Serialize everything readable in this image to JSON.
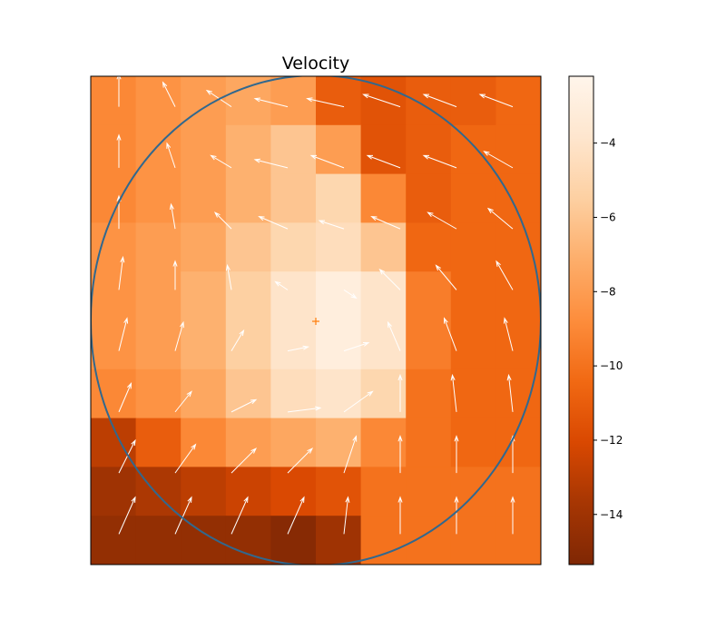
{
  "chart_data": {
    "type": "heatmap",
    "title": "Velocity",
    "z": [
      [
        -9,
        -8.5,
        -8,
        -7.5,
        -8,
        -11,
        -11.5,
        -11,
        -11,
        -10.5
      ],
      [
        -9,
        -8.5,
        -8,
        -7,
        -6,
        -8,
        -11.5,
        -11,
        -10.5,
        -10.5
      ],
      [
        -9,
        -8.5,
        -8,
        -7,
        -6,
        -5,
        -9,
        -11,
        -10.5,
        -10.5
      ],
      [
        -8.5,
        -8,
        -7.5,
        -6,
        -5,
        -4.5,
        -6,
        -10.5,
        -10.5,
        -10.5
      ],
      [
        -8.5,
        -8,
        -7,
        -5.5,
        -4,
        -3,
        -4,
        -9.5,
        -10.5,
        -10.5
      ],
      [
        -8.5,
        -8,
        -7,
        -5.5,
        -4,
        -3,
        -4,
        -9.5,
        -10.5,
        -10.5
      ],
      [
        -9,
        -8.5,
        -7.5,
        -6,
        -4.5,
        -4,
        -5,
        -10,
        -10.5,
        -10.5
      ],
      [
        -13,
        -11,
        -9,
        -8,
        -7.5,
        -7,
        -9,
        -10,
        -10.5,
        -10.5
      ],
      [
        -14,
        -13.5,
        -13,
        -12.5,
        -12,
        -11.5,
        -10,
        -10,
        -10,
        -10
      ],
      [
        -14.5,
        -14.5,
        -14.5,
        -14.5,
        -15,
        -14,
        -10,
        -10,
        -10,
        -10
      ]
    ],
    "quiver": {
      "color": "#ffffff",
      "u": [
        [
          0,
          -0.3,
          -0.6,
          -0.8,
          -0.9,
          -0.9,
          -0.8,
          -0.8
        ],
        [
          0,
          -0.2,
          -0.5,
          -0.8,
          -0.8,
          -0.8,
          -0.8,
          -0.7
        ],
        [
          0,
          -0.1,
          -0.4,
          -0.7,
          -0.6,
          -0.7,
          -0.7,
          -0.6
        ],
        [
          0.1,
          0,
          -0.1,
          -0.3,
          0.3,
          -0.5,
          -0.5,
          -0.4
        ],
        [
          0.2,
          0.2,
          0.3,
          0.5,
          0.6,
          -0.3,
          -0.3,
          -0.2
        ],
        [
          0.3,
          0.4,
          0.6,
          0.8,
          0.7,
          0,
          -0.1,
          -0.1
        ],
        [
          0.4,
          0.5,
          0.6,
          0.6,
          0.3,
          0,
          0,
          0
        ],
        [
          0.4,
          0.4,
          0.4,
          0.4,
          0.1,
          0,
          0,
          0
        ]
      ],
      "v": [
        [
          0.8,
          0.6,
          0.4,
          0.2,
          0.2,
          0.3,
          0.3,
          0.3
        ],
        [
          0.8,
          0.6,
          0.3,
          0.2,
          0.3,
          0.3,
          0.3,
          0.4
        ],
        [
          0.8,
          0.6,
          0.4,
          0.3,
          0.2,
          0.3,
          0.4,
          0.5
        ],
        [
          0.8,
          0.7,
          0.6,
          0.2,
          -0.2,
          0.5,
          0.6,
          0.7
        ],
        [
          0.8,
          0.7,
          0.5,
          0.1,
          0.2,
          0.7,
          0.8,
          0.8
        ],
        [
          0.7,
          0.5,
          0.3,
          0.1,
          0.5,
          0.9,
          0.9,
          0.9
        ],
        [
          0.8,
          0.7,
          0.6,
          0.6,
          0.9,
          0.9,
          0.9,
          0.9
        ],
        [
          0.9,
          0.9,
          0.9,
          0.9,
          0.9,
          0.9,
          0.9,
          0.9
        ]
      ]
    },
    "colormap": [
      "#7f2704",
      "#a63603",
      "#d94801",
      "#f16913",
      "#fd8d3c",
      "#fdae6b",
      "#fdd0a2",
      "#fee6ce",
      "#fff5eb"
    ],
    "clim": [
      -15.35,
      -2.2
    ],
    "cticks": [
      {
        "value": -4,
        "label": "−4"
      },
      {
        "value": -6,
        "label": "−6"
      },
      {
        "value": -8,
        "label": "−8"
      },
      {
        "value": -10,
        "label": "−10"
      },
      {
        "value": -12,
        "label": "−12"
      },
      {
        "value": -14,
        "label": "−14"
      }
    ]
  }
}
